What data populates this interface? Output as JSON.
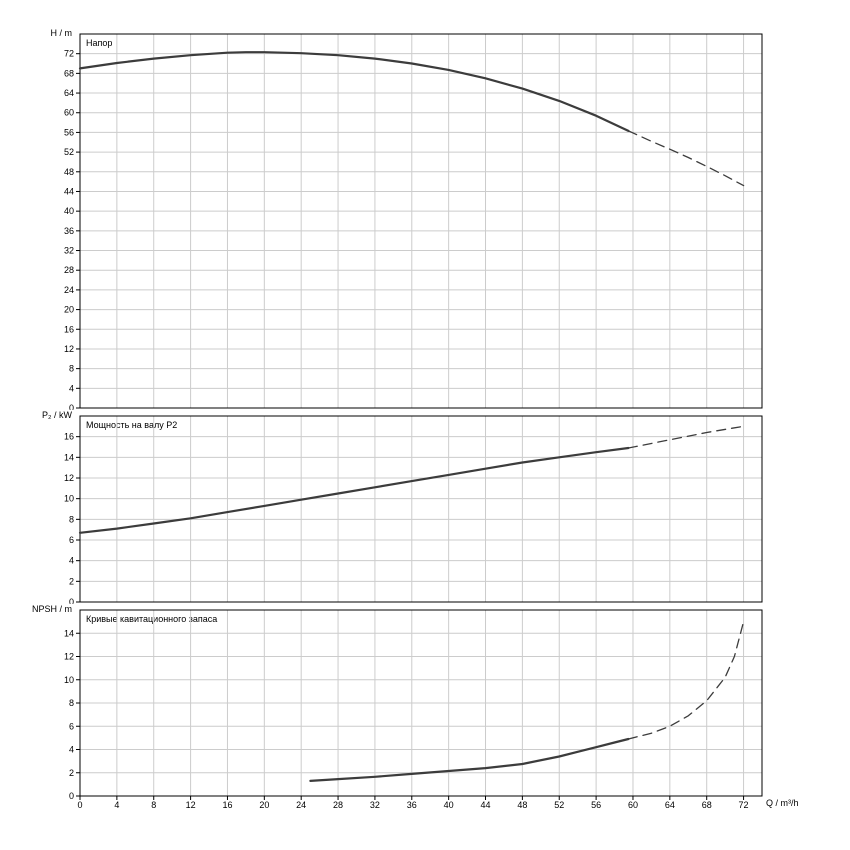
{
  "style": {
    "background": "#ffffff",
    "curve_color": "#3c3c3c",
    "grid_color": "#cccccc",
    "border_color": "#000000",
    "tick_color": "#000000"
  },
  "x_axis": {
    "label": "Q / m³/h",
    "min": 0,
    "max": 74,
    "tick_step": 4,
    "tick_max": 72,
    "tick_labels": [
      "0",
      "4",
      "8",
      "12",
      "16",
      "20",
      "24",
      "28",
      "32",
      "36",
      "40",
      "44",
      "48",
      "52",
      "56",
      "60",
      "64",
      "68",
      "72"
    ]
  },
  "chart_data": [
    {
      "type": "line",
      "name": "head",
      "title": "Напор",
      "ylabel": "H / m",
      "ylim": [
        0,
        76
      ],
      "ytick_step": 4,
      "ytick_max": 72,
      "ytick_labels": [
        "0",
        "4",
        "8",
        "12",
        "16",
        "20",
        "24",
        "28",
        "32",
        "36",
        "40",
        "44",
        "48",
        "52",
        "56",
        "60",
        "64",
        "68",
        "72"
      ],
      "grid": true,
      "series": [
        {
          "name": "solid",
          "style": "solid",
          "points": [
            [
              0,
              69.0
            ],
            [
              4,
              70.1
            ],
            [
              8,
              71.0
            ],
            [
              12,
              71.7
            ],
            [
              16,
              72.2
            ],
            [
              18,
              72.3
            ],
            [
              20,
              72.3
            ],
            [
              22,
              72.2
            ],
            [
              24,
              72.1
            ],
            [
              28,
              71.7
            ],
            [
              32,
              71.0
            ],
            [
              36,
              70.0
            ],
            [
              40,
              68.7
            ],
            [
              44,
              67.0
            ],
            [
              48,
              64.9
            ],
            [
              52,
              62.4
            ],
            [
              56,
              59.4
            ],
            [
              59.5,
              56.3
            ]
          ]
        },
        {
          "name": "dashed",
          "style": "dashed",
          "points": [
            [
              59.5,
              56.3
            ],
            [
              62,
              54.2
            ],
            [
              64,
              52.6
            ],
            [
              66,
              50.9
            ],
            [
              68,
              49.1
            ],
            [
              70,
              47.2
            ],
            [
              72,
              45.2
            ]
          ]
        }
      ]
    },
    {
      "type": "line",
      "name": "power",
      "title": "Мощность на валу P2",
      "ylabel": "P₂ / kW",
      "ylim": [
        0,
        18
      ],
      "ytick_step": 2,
      "ytick_max": 16,
      "ytick_labels": [
        "0",
        "2",
        "4",
        "6",
        "8",
        "10",
        "12",
        "14",
        "16"
      ],
      "grid": true,
      "series": [
        {
          "name": "solid",
          "style": "solid",
          "points": [
            [
              0,
              6.7
            ],
            [
              4,
              7.1
            ],
            [
              8,
              7.6
            ],
            [
              12,
              8.1
            ],
            [
              16,
              8.7
            ],
            [
              20,
              9.3
            ],
            [
              24,
              9.9
            ],
            [
              28,
              10.5
            ],
            [
              32,
              11.1
            ],
            [
              36,
              11.7
            ],
            [
              40,
              12.3
            ],
            [
              44,
              12.9
            ],
            [
              48,
              13.5
            ],
            [
              52,
              14.0
            ],
            [
              56,
              14.5
            ],
            [
              59.5,
              14.9
            ]
          ]
        },
        {
          "name": "dashed",
          "style": "dashed",
          "points": [
            [
              59.5,
              14.9
            ],
            [
              64,
              15.7
            ],
            [
              68,
              16.4
            ],
            [
              72,
              17.0
            ]
          ]
        }
      ]
    },
    {
      "type": "line",
      "name": "npsh",
      "title": "Кривые кавитационного запаса",
      "ylabel": "NPSH / m",
      "ylim": [
        0,
        16
      ],
      "ytick_step": 2,
      "ytick_max": 14,
      "ytick_labels": [
        "0",
        "2",
        "4",
        "6",
        "8",
        "10",
        "12",
        "14"
      ],
      "grid": true,
      "series": [
        {
          "name": "solid",
          "style": "solid",
          "points": [
            [
              25,
              1.3
            ],
            [
              28,
              1.45
            ],
            [
              32,
              1.65
            ],
            [
              36,
              1.9
            ],
            [
              40,
              2.15
            ],
            [
              44,
              2.4
            ],
            [
              48,
              2.75
            ],
            [
              52,
              3.4
            ],
            [
              54,
              3.8
            ],
            [
              56,
              4.2
            ],
            [
              58,
              4.6
            ],
            [
              59.5,
              4.9
            ]
          ]
        },
        {
          "name": "dashed",
          "style": "dashed",
          "points": [
            [
              59.5,
              4.9
            ],
            [
              62,
              5.4
            ],
            [
              64,
              6.0
            ],
            [
              66,
              6.9
            ],
            [
              68,
              8.2
            ],
            [
              70,
              10.2
            ],
            [
              71,
              12.0
            ],
            [
              72,
              15.0
            ]
          ]
        }
      ]
    }
  ]
}
